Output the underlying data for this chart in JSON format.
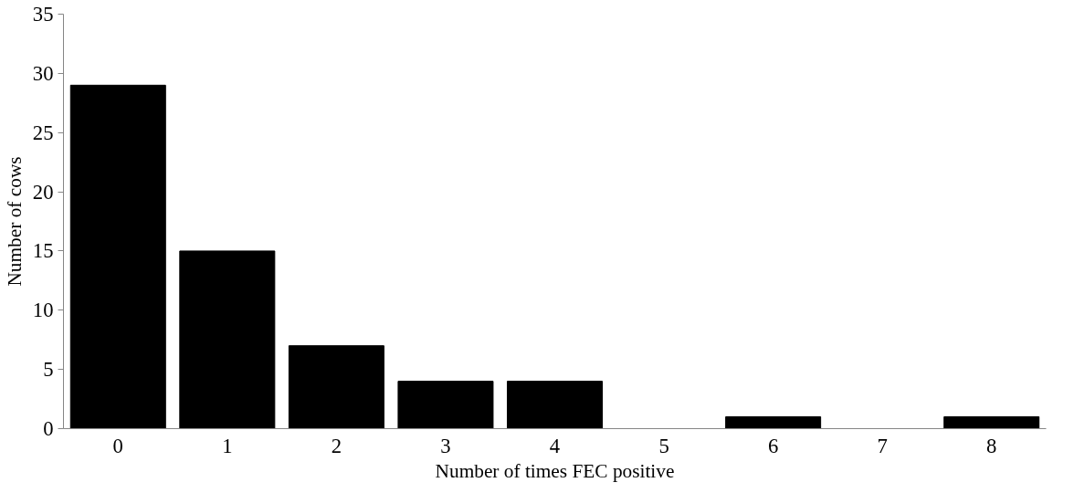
{
  "chart_data": {
    "type": "bar",
    "xlabel": "Number of times FEC positive",
    "ylabel": "Number of cows",
    "categories": [
      "0",
      "1",
      "2",
      "3",
      "4",
      "5",
      "6",
      "7",
      "8"
    ],
    "values": [
      29,
      15,
      7,
      4,
      4,
      0,
      1,
      0,
      1
    ],
    "color": "#000000",
    "ylim": [
      0,
      35
    ],
    "yticks": [
      0,
      5,
      10,
      15,
      20,
      25,
      30,
      35
    ],
    "grid": false
  }
}
